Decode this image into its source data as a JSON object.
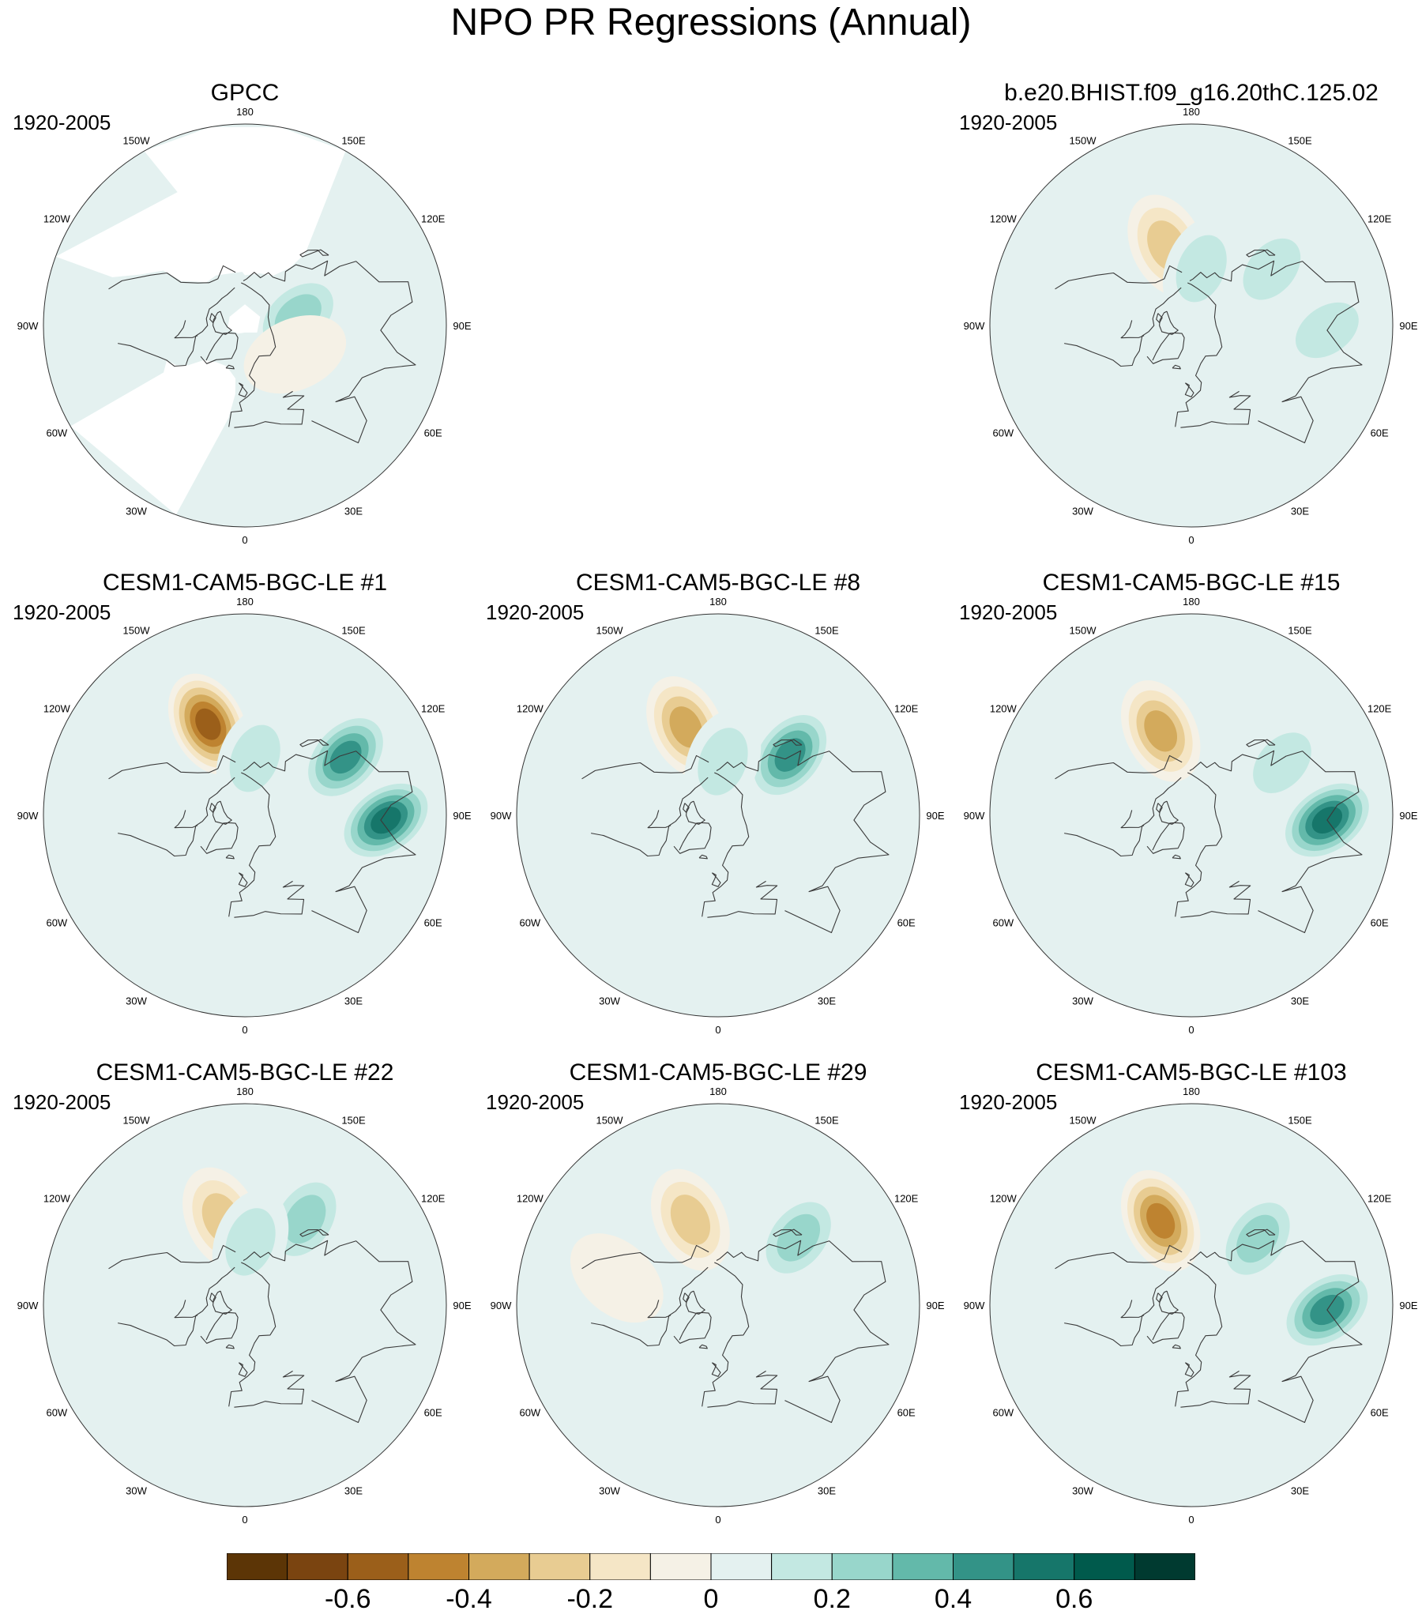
{
  "title": "NPO PR Regressions (Annual)",
  "longitude_labels": [
    "180",
    "150E",
    "120E",
    "90E",
    "60E",
    "30E",
    "0",
    "30W",
    "60W",
    "90W",
    "120W",
    "150W"
  ],
  "panels": [
    {
      "title": "GPCC",
      "period": "1920-2005",
      "masked_ocean": true,
      "features": [
        {
          "lon": 100,
          "lat": 60,
          "strength": 0.28
        },
        {
          "lon": 60,
          "lat": 58,
          "strength": -0.08
        }
      ]
    },
    {
      "title": "b.e20.BHIST.f09_g16.20thC.125.02",
      "period": "1920-2005",
      "masked_ocean": false,
      "features": [
        {
          "lon": -163,
          "lat": 45,
          "strength": -0.3
        },
        {
          "lon": 170,
          "lat": 58,
          "strength": 0.2
        },
        {
          "lon": 125,
          "lat": 38,
          "strength": 0.18
        },
        {
          "lon": 88,
          "lat": 22,
          "strength": 0.2
        }
      ]
    },
    {
      "title": "CESM1-CAM5-BGC-LE #1",
      "period": "1920-2005",
      "masked_ocean": false,
      "features": [
        {
          "lon": -158,
          "lat": 38,
          "strength": -0.55
        },
        {
          "lon": 120,
          "lat": 30,
          "strength": 0.45
        },
        {
          "lon": 88,
          "lat": 20,
          "strength": 0.6
        },
        {
          "lon": 170,
          "lat": 58,
          "strength": 0.2
        }
      ]
    },
    {
      "title": "CESM1-CAM5-BGC-LE #8",
      "period": "1920-2005",
      "masked_ocean": false,
      "features": [
        {
          "lon": -160,
          "lat": 40,
          "strength": -0.42
        },
        {
          "lon": 130,
          "lat": 40,
          "strength": 0.45
        },
        {
          "lon": 175,
          "lat": 60,
          "strength": 0.2
        }
      ]
    },
    {
      "title": "CESM1-CAM5-BGC-LE #15",
      "period": "1920-2005",
      "masked_ocean": false,
      "features": [
        {
          "lon": -160,
          "lat": 42,
          "strength": -0.42
        },
        {
          "lon": 88,
          "lat": 22,
          "strength": 0.55
        },
        {
          "lon": 120,
          "lat": 35,
          "strength": 0.2
        }
      ]
    },
    {
      "title": "CESM1-CAM5-BGC-LE #22",
      "period": "1920-2005",
      "masked_ocean": false,
      "features": [
        {
          "lon": -165,
          "lat": 42,
          "strength": -0.35
        },
        {
          "lon": 145,
          "lat": 35,
          "strength": 0.3
        },
        {
          "lon": 175,
          "lat": 55,
          "strength": 0.22
        }
      ]
    },
    {
      "title": "CESM1-CAM5-BGC-LE #29",
      "period": "1920-2005",
      "masked_ocean": false,
      "features": [
        {
          "lon": -162,
          "lat": 42,
          "strength": -0.35
        },
        {
          "lon": 130,
          "lat": 35,
          "strength": 0.32
        },
        {
          "lon": -105,
          "lat": 35,
          "strength": -0.12
        }
      ]
    },
    {
      "title": "CESM1-CAM5-BGC-LE #103",
      "period": "1920-2005",
      "masked_ocean": false,
      "features": [
        {
          "lon": -160,
          "lat": 42,
          "strength": -0.5
        },
        {
          "lon": 88,
          "lat": 22,
          "strength": 0.5
        },
        {
          "lon": 135,
          "lat": 40,
          "strength": 0.25
        }
      ]
    }
  ],
  "colorbar": {
    "labels": [
      "-0.6",
      "-0.4",
      "-0.2",
      "0",
      "0.2",
      "0.4",
      "0.6"
    ],
    "label_values": [
      -0.6,
      -0.4,
      -0.2,
      0,
      0.2,
      0.4,
      0.6
    ],
    "min": -0.8,
    "max": 0.8,
    "colors": [
      "#5c3506",
      "#7a4410",
      "#9b5f1a",
      "#be8330",
      "#d3aa5c",
      "#e8cc92",
      "#f5e6c6",
      "#f5f1e6",
      "#e4f1f0",
      "#c3e8e2",
      "#98d6cb",
      "#63b9aa",
      "#339387",
      "#16766a",
      "#005a4c",
      "#003a30"
    ]
  }
}
